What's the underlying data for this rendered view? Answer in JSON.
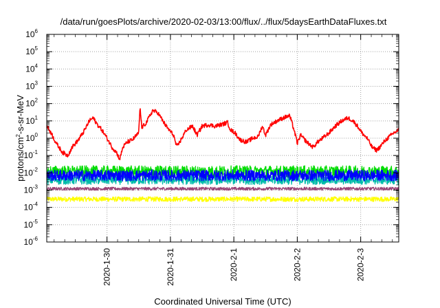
{
  "chart_data": {
    "type": "line",
    "title": "/data/run/goesPlots/archive/2020-02-03/13:00/flux/../flux/5daysEarthDataFluxes.txt",
    "xlabel": "Coordinated Universal Time (UTC)",
    "ylabel_parts": [
      "protons/cm",
      "2",
      "-s-sr-MeV"
    ],
    "y_scale": "log",
    "ylim_exp": [
      -6,
      6
    ],
    "y_tick_exponents": [
      -6,
      -5,
      -4,
      -3,
      -2,
      -1,
      0,
      1,
      2,
      3,
      4,
      5,
      6
    ],
    "x_tick_labels": [
      "2020-1-30",
      "2020-1-31",
      "2020-2-1",
      "2020-2-2",
      "2020-2-3"
    ],
    "x_tick_pos": [
      1.0,
      2.0,
      3.0,
      4.0,
      5.0
    ],
    "xlim_days": [
      0.05,
      5.6
    ],
    "grid": true,
    "series": [
      {
        "color": "#ff0000",
        "kind": "keypoints",
        "noise": 0.12,
        "points": [
          [
            0.05,
            5.0
          ],
          [
            0.12,
            2.0
          ],
          [
            0.2,
            0.5
          ],
          [
            0.3,
            0.15
          ],
          [
            0.38,
            0.1
          ],
          [
            0.45,
            0.3
          ],
          [
            0.55,
            0.8
          ],
          [
            0.65,
            3.0
          ],
          [
            0.72,
            10.0
          ],
          [
            0.78,
            15.0
          ],
          [
            0.85,
            6.0
          ],
          [
            0.92,
            3.0
          ],
          [
            1.0,
            1.0
          ],
          [
            1.08,
            0.3
          ],
          [
            1.15,
            0.15
          ],
          [
            1.2,
            0.06
          ],
          [
            1.25,
            0.3
          ],
          [
            1.32,
            0.6
          ],
          [
            1.4,
            0.8
          ],
          [
            1.5,
            2.0
          ],
          [
            1.52,
            60.0
          ],
          [
            1.55,
            4.0
          ],
          [
            1.62,
            8.0
          ],
          [
            1.72,
            40.0
          ],
          [
            1.8,
            30.0
          ],
          [
            1.88,
            10.0
          ],
          [
            1.95,
            4.0
          ],
          [
            2.05,
            1.5
          ],
          [
            2.1,
            0.3
          ],
          [
            2.18,
            1.0
          ],
          [
            2.25,
            3.0
          ],
          [
            2.35,
            5.0
          ],
          [
            2.42,
            1.5
          ],
          [
            2.5,
            5.0
          ],
          [
            2.6,
            6.0
          ],
          [
            2.7,
            5.0
          ],
          [
            2.8,
            6.0
          ],
          [
            2.9,
            8.0
          ],
          [
            2.95,
            3.0
          ],
          [
            3.02,
            2.0
          ],
          [
            3.1,
            0.8
          ],
          [
            3.2,
            0.6
          ],
          [
            3.3,
            1.0
          ],
          [
            3.38,
            1.2
          ],
          [
            3.45,
            5.0
          ],
          [
            3.5,
            1.5
          ],
          [
            3.58,
            6.0
          ],
          [
            3.68,
            10.0
          ],
          [
            3.78,
            15.0
          ],
          [
            3.88,
            20.0
          ],
          [
            3.95,
            3.0
          ],
          [
            4.0,
            0.5
          ],
          [
            4.05,
            1.5
          ],
          [
            4.15,
            0.6
          ],
          [
            4.25,
            0.3
          ],
          [
            4.32,
            0.6
          ],
          [
            4.4,
            1.0
          ],
          [
            4.5,
            2.0
          ],
          [
            4.6,
            5.0
          ],
          [
            4.7,
            10.0
          ],
          [
            4.8,
            15.0
          ],
          [
            4.88,
            10.0
          ],
          [
            4.95,
            5.0
          ],
          [
            5.02,
            2.0
          ],
          [
            5.1,
            1.0
          ],
          [
            5.18,
            0.3
          ],
          [
            5.25,
            0.2
          ],
          [
            5.3,
            0.3
          ],
          [
            5.38,
            0.7
          ],
          [
            5.45,
            1.2
          ],
          [
            5.52,
            2.0
          ],
          [
            5.6,
            3.0
          ]
        ]
      },
      {
        "color": "#00dd00",
        "kind": "noise",
        "base": 0.012,
        "amp": 0.33
      },
      {
        "color": "#00bbaa",
        "kind": "noise",
        "base": 0.004,
        "amp": 0.28
      },
      {
        "color": "#0000ff",
        "kind": "noise",
        "base": 0.007,
        "amp": 0.32
      },
      {
        "color": "#994477",
        "kind": "noise",
        "base": 0.0012,
        "amp": 0.09
      },
      {
        "color": "#ffff00",
        "kind": "noise",
        "base": 0.0003,
        "amp": 0.14
      }
    ]
  }
}
